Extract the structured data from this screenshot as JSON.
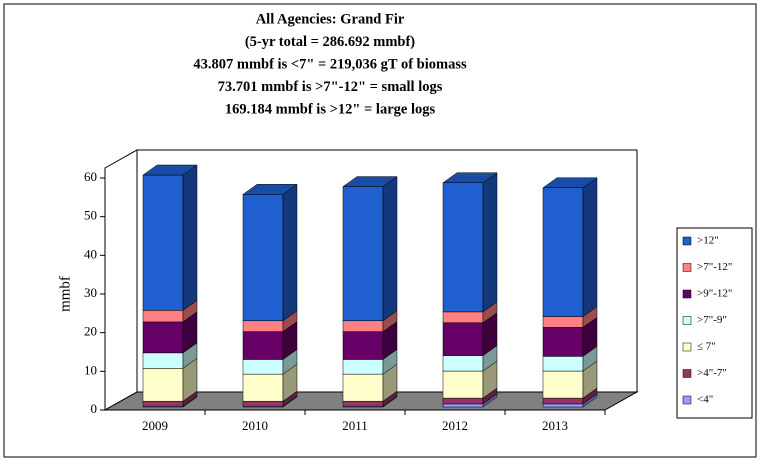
{
  "chart_data": {
    "type": "bar3d_stacked",
    "title": [
      "All Agencies: Grand Fir",
      "(5-yr total = 286.692 mmbf)",
      "43.807 mmbf is <7\" = 219,036 gT of biomass",
      "73.701 mmbf is >7\"-12\" = small logs",
      "169.184 mmbf is >12\" = large logs"
    ],
    "y_label": "mmbf",
    "categories": [
      "2009",
      "2010",
      "2011",
      "2012",
      "2013"
    ],
    "series": [
      {
        "name": "<4\"",
        "color": "#9999ff",
        "values": [
          0.2,
          0.2,
          0.2,
          0.8,
          0.8
        ]
      },
      {
        "name": ">4\"-7\"",
        "color": "#993366",
        "values": [
          1.3,
          1.3,
          1.3,
          1.5,
          1.5
        ]
      },
      {
        "name": "≤ 7\"",
        "color": "#ffffcc",
        "values": [
          8.5,
          7,
          7,
          7,
          7
        ]
      },
      {
        "name": ">7\"-9\"",
        "color": "#ccffff",
        "values": [
          4,
          3.8,
          3.8,
          4,
          3.8
        ]
      },
      {
        "name": ">9\"-12\"",
        "color": "#660066",
        "values": [
          8,
          7.2,
          7.2,
          8.5,
          7.5
        ]
      },
      {
        "name": ">7\"-12\"",
        "color": "#ff8080",
        "values": [
          3,
          2.8,
          2.8,
          2.8,
          2.8
        ]
      },
      {
        "name": ">12\"",
        "color": "#1f5fcf",
        "values": [
          35,
          32.7,
          34.7,
          33.4,
          33.3
        ]
      }
    ],
    "ylim": [
      0,
      60
    ],
    "yticks": [
      0,
      10,
      20,
      30,
      40,
      50,
      60
    ],
    "legend": "right"
  }
}
